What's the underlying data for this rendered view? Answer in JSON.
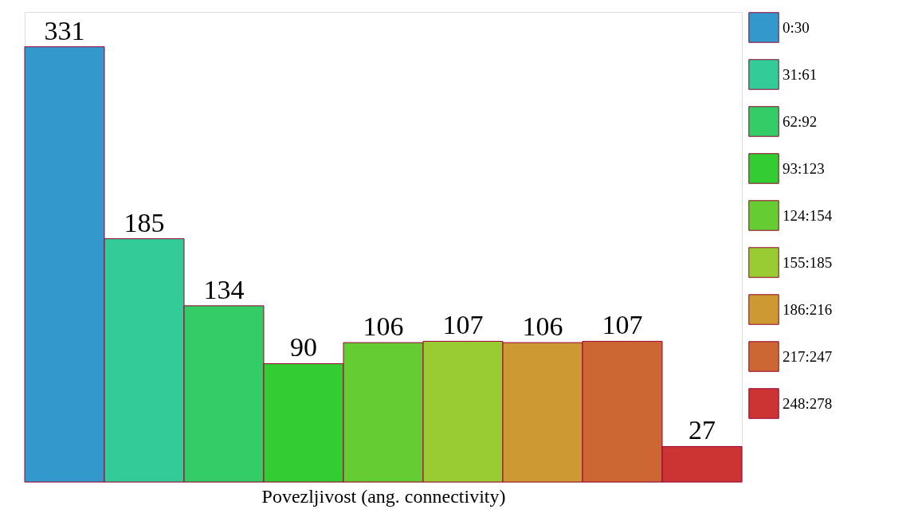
{
  "chart_data": {
    "type": "bar",
    "xlabel": "Povezljivost (ang. connectivity)",
    "categories": [
      null,
      null,
      null,
      null,
      null,
      null,
      null,
      null,
      null
    ],
    "series": [
      {
        "name": "0:30",
        "color": "#3399cc",
        "values": [
          331,
          null,
          null,
          null,
          null,
          null,
          null,
          null,
          null
        ]
      },
      {
        "name": "31:61",
        "color": "#33cc99",
        "values": [
          null,
          185,
          null,
          null,
          null,
          null,
          null,
          null,
          null
        ]
      },
      {
        "name": "62:92",
        "color": "#33cc66",
        "values": [
          null,
          null,
          134,
          null,
          null,
          null,
          null,
          null,
          null
        ]
      },
      {
        "name": "93:123",
        "color": "#33cc33",
        "values": [
          null,
          null,
          null,
          90,
          null,
          null,
          null,
          null,
          null
        ]
      },
      {
        "name": "124:154",
        "color": "#66cc33",
        "values": [
          null,
          null,
          null,
          null,
          106,
          null,
          null,
          null,
          null
        ]
      },
      {
        "name": "155:185",
        "color": "#99cc33",
        "values": [
          null,
          null,
          null,
          null,
          null,
          107,
          null,
          null,
          null
        ]
      },
      {
        "name": "186:216",
        "color": "#cc9933",
        "values": [
          null,
          null,
          null,
          null,
          null,
          null,
          106,
          null,
          null
        ]
      },
      {
        "name": "217:247",
        "color": "#cc6633",
        "values": [
          null,
          null,
          null,
          null,
          null,
          null,
          null,
          107,
          null
        ]
      },
      {
        "name": "248:278",
        "color": "#cc3333",
        "values": [
          null,
          null,
          null,
          null,
          null,
          null,
          null,
          null,
          27
        ]
      }
    ],
    "stacked": true,
    "data_labels": true,
    "legend": "right",
    "tick_labels": false,
    "grid": false
  }
}
